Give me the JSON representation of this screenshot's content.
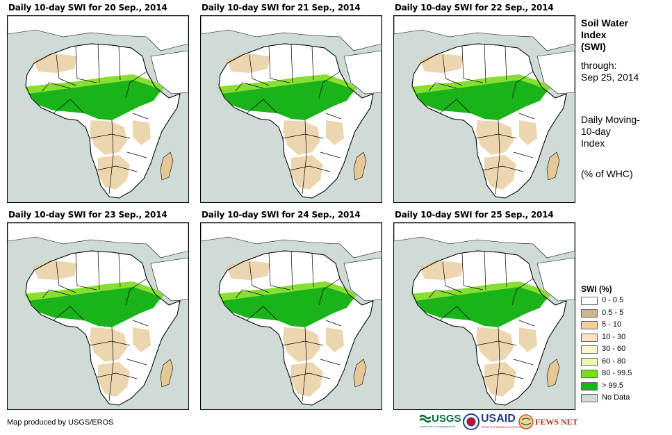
{
  "panels": [
    {
      "title": "Daily 10-day  SWI for 20 Sep., 2014"
    },
    {
      "title": "Daily 10-day  SWI for 21 Sep., 2014"
    },
    {
      "title": "Daily 10-day  SWI for 22 Sep., 2014"
    },
    {
      "title": "Daily 10-day  SWI for 23 Sep., 2014"
    },
    {
      "title": "Daily 10-day  SWI for 24 Sep., 2014"
    },
    {
      "title": "Daily 10-day  SWI for 25 Sep., 2014"
    }
  ],
  "side": {
    "title_line1": "Soil Water",
    "title_line2": "Index",
    "title_line3": "(SWI)",
    "through_label": "through:",
    "through_date": "Sep 25, 2014",
    "desc_line1": "Daily Moving-",
    "desc_line2": "10-day",
    "desc_line3": "Index",
    "units": "(% of WHC)"
  },
  "legend": {
    "title": "SWI (%)",
    "items": [
      {
        "label": "0 - 0.5",
        "color": "#ffffff"
      },
      {
        "label": "0.5 - 5",
        "color": "#d2b48c"
      },
      {
        "label": "5 - 10",
        "color": "#f0d09c"
      },
      {
        "label": "10 - 30",
        "color": "#fbe3c0"
      },
      {
        "label": "30 - 60",
        "color": "#fbf5d3"
      },
      {
        "label": "60 - 80",
        "color": "#ecf9b4"
      },
      {
        "label": "80 - 99.5",
        "color": "#7bdc1c"
      },
      {
        "label": "> 99.5",
        "color": "#1ab31a"
      },
      {
        "label": "No Data",
        "color": "#cfdbd6"
      }
    ]
  },
  "footer": {
    "credit": "Map produced by USGS/EROS",
    "logos": {
      "usgs": "USGS",
      "usgs_tagline": "science for a changing world",
      "usaid": "USAID",
      "usaid_tagline": "FROM THE AMERICAN PEOPLE",
      "fewsnet": "FEWS NET"
    }
  },
  "colors": {
    "land": "#ffffff",
    "sea": "#cfdbd6",
    "wet": "#1ab31a",
    "moist": "#7bdc1c",
    "dry": "#e6c896",
    "border": "#000000"
  }
}
